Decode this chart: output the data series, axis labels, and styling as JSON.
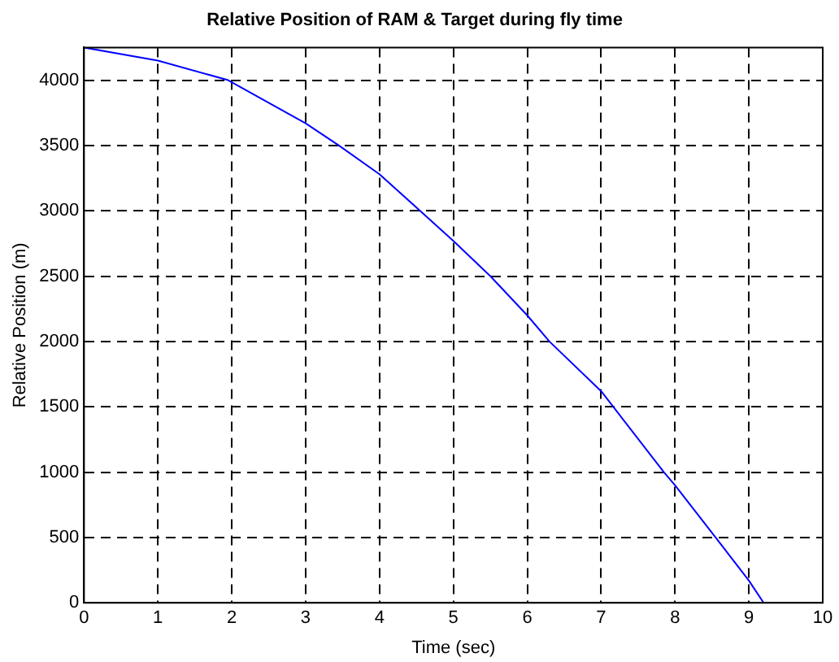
{
  "chart_data": {
    "type": "line",
    "title": "Relative Position of RAM & Target during fly time",
    "xlabel": "Time (sec)",
    "ylabel": "Relative Position (m)",
    "x": [
      0,
      1,
      1.95,
      3,
      3.45,
      4,
      4.55,
      5,
      5.5,
      6,
      6.3,
      7,
      7.85,
      8,
      8.55,
      9,
      9.2
    ],
    "series": [
      {
        "color": "#0000ff",
        "values": [
          4250,
          4150,
          4000,
          3670,
          3500,
          3280,
          3000,
          2770,
          2500,
          2200,
          2000,
          1620,
          1000,
          900,
          500,
          170,
          0
        ]
      }
    ],
    "xlim": [
      0,
      10
    ],
    "xticks": [
      0,
      1,
      2,
      3,
      4,
      5,
      6,
      7,
      8,
      9,
      10
    ],
    "ylim": [
      0,
      4250
    ],
    "yticks": [
      0,
      500,
      1000,
      1500,
      2000,
      2500,
      3000,
      3500,
      4000
    ],
    "grid": true,
    "legend": false,
    "marker": "none",
    "line_style": "solid"
  }
}
